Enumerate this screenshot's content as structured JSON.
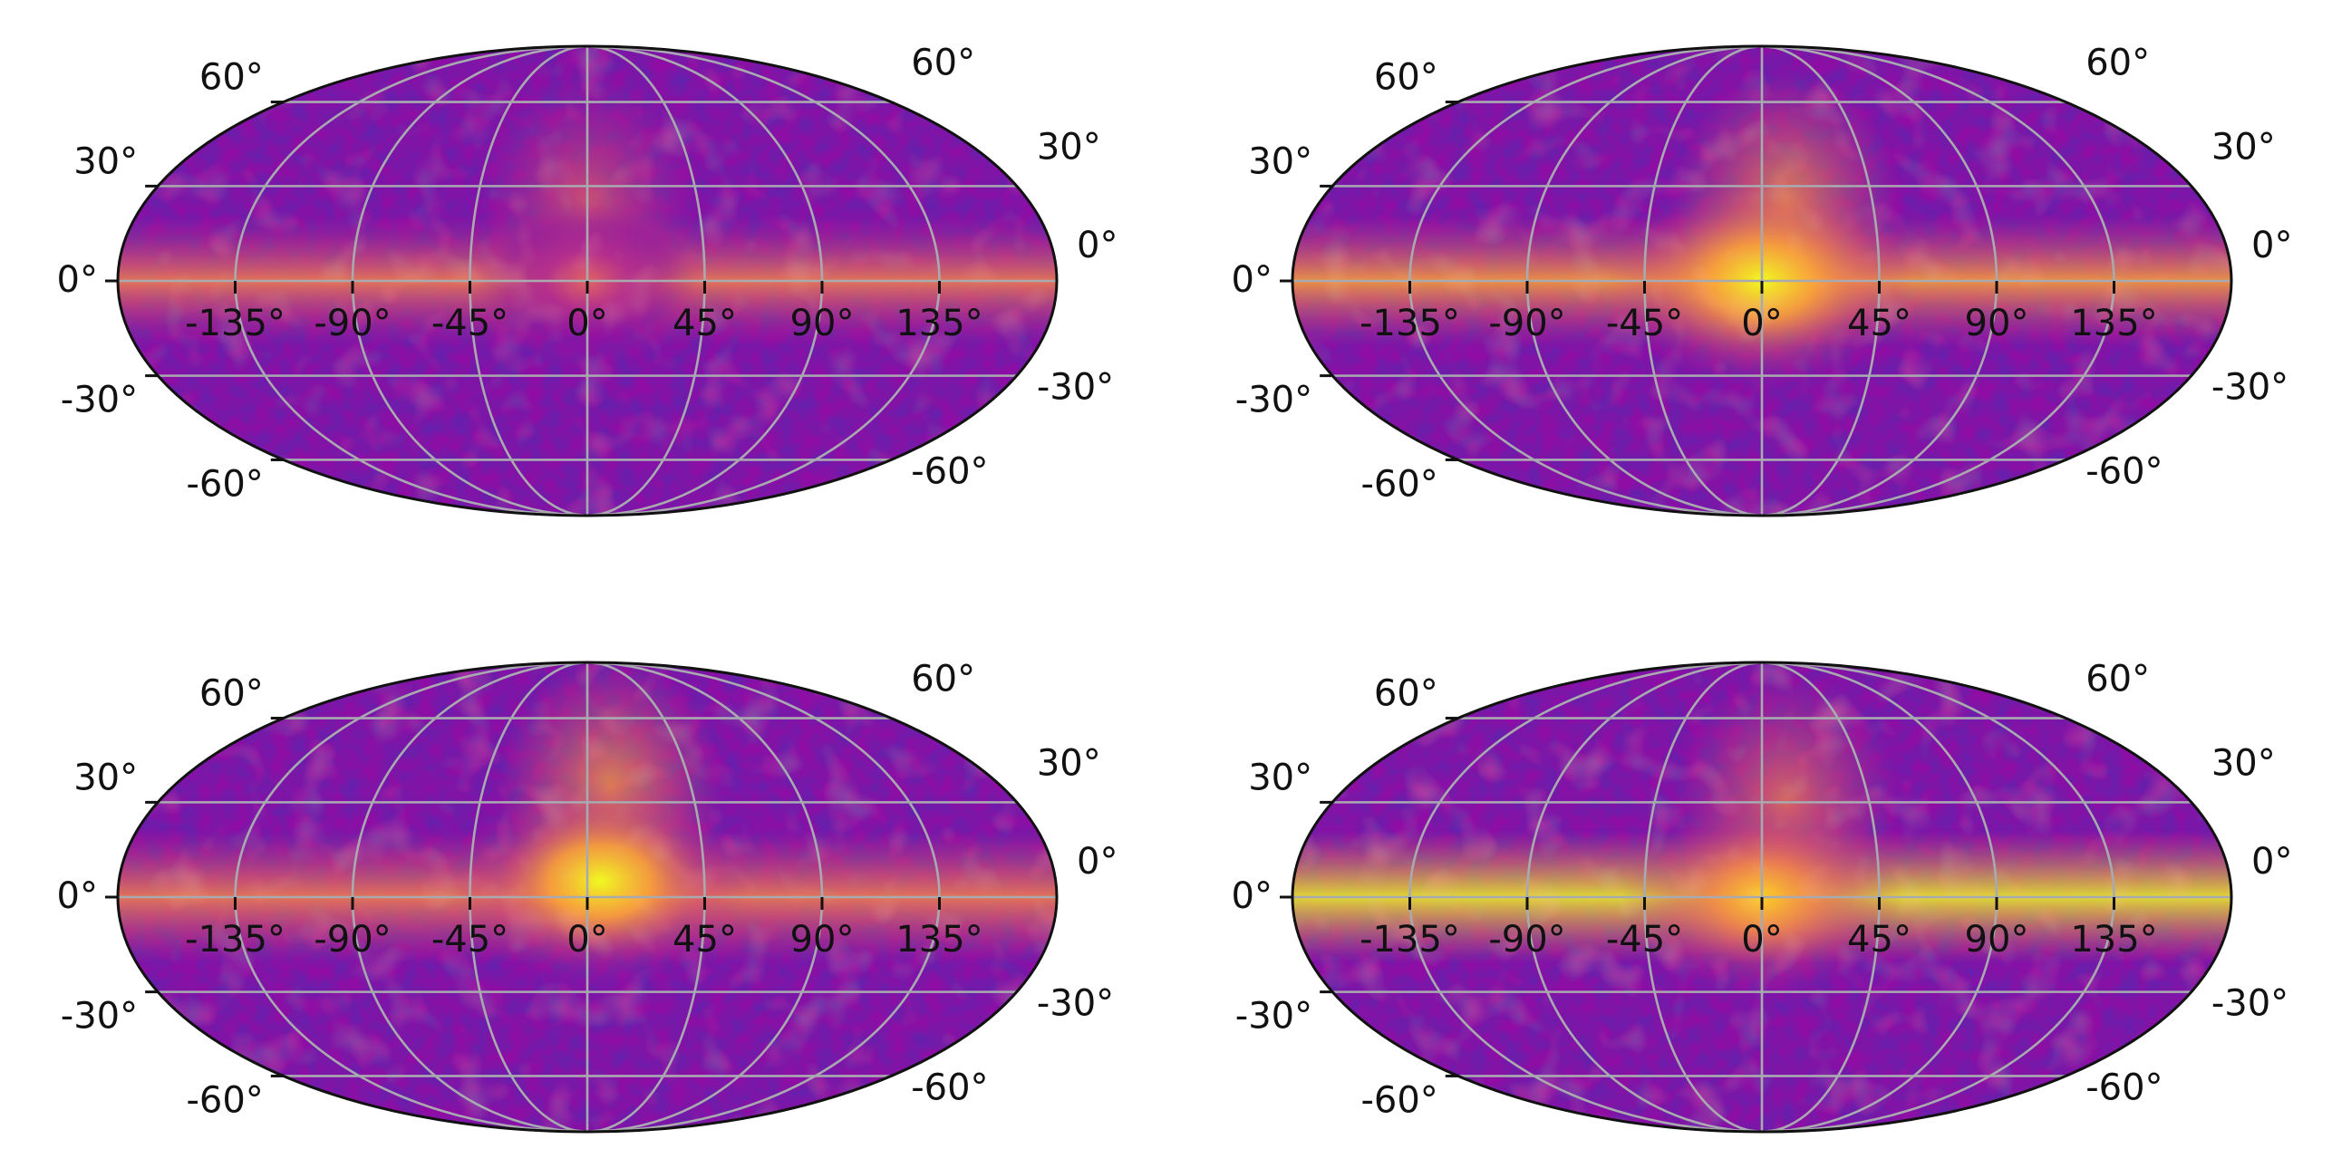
{
  "figure": {
    "colormap": [
      "#0d0887",
      "#3b049a",
      "#6a00a8",
      "#8f0da4",
      "#b12a90",
      "#cc4778",
      "#e16462",
      "#f2844b",
      "#fca636",
      "#fcce25",
      "#f0f921"
    ]
  },
  "chart_data": [
    {
      "type": "heatmap",
      "projection": "mollweide",
      "title": "",
      "xlabel": "",
      "ylabel": "",
      "xlim": [
        -180,
        180
      ],
      "ylim": [
        -90,
        90
      ],
      "grid": true,
      "lon_ticks": [
        -135,
        -90,
        -45,
        0,
        45,
        90,
        135
      ],
      "lon_tick_labels": [
        "-135°",
        "-90°",
        "-45°",
        "0°",
        "45°",
        "90°",
        "135°"
      ],
      "lat_ticks": [
        -60,
        -30,
        0,
        30,
        60
      ],
      "left_lat_labels": [
        "60°",
        "30°",
        "0°",
        "-30°",
        "-60°"
      ],
      "right_lat_labels": [
        "60°",
        "30°",
        "0°",
        "-30°",
        "-60°"
      ],
      "intensity_scale": [
        0,
        1
      ],
      "features": [
        {
          "kind": "galactic-center-bulge",
          "lon": 0,
          "lat": 0,
          "peak": 0.55
        },
        {
          "kind": "galactic-plane-band",
          "lat": 0,
          "peak": 0.4
        },
        {
          "kind": "north-bubble",
          "lon": 0,
          "lat": 25,
          "peak": 0.35
        }
      ]
    },
    {
      "type": "heatmap",
      "projection": "mollweide",
      "title": "",
      "xlabel": "",
      "ylabel": "",
      "xlim": [
        -180,
        180
      ],
      "ylim": [
        -90,
        90
      ],
      "grid": true,
      "lon_ticks": [
        -135,
        -90,
        -45,
        0,
        45,
        90,
        135
      ],
      "lon_tick_labels": [
        "-135°",
        "-90°",
        "-45°",
        "0°",
        "45°",
        "90°",
        "135°"
      ],
      "lat_ticks": [
        -60,
        -30,
        0,
        30,
        60
      ],
      "left_lat_labels": [
        "60°",
        "30°",
        "0°",
        "-30°",
        "-60°"
      ],
      "right_lat_labels": [
        "60°",
        "30°",
        "0°",
        "-30°",
        "-60°"
      ],
      "intensity_scale": [
        0,
        1
      ],
      "features": [
        {
          "kind": "galactic-center-bulge",
          "lon": 0,
          "lat": 0,
          "peak": 1.0
        },
        {
          "kind": "galactic-plane-band",
          "lat": 0,
          "peak": 0.5
        },
        {
          "kind": "north-bubble",
          "lon": 10,
          "lat": 25,
          "peak": 0.55
        }
      ]
    },
    {
      "type": "heatmap",
      "projection": "mollweide",
      "title": "",
      "xlabel": "",
      "ylabel": "",
      "xlim": [
        -180,
        180
      ],
      "ylim": [
        -90,
        90
      ],
      "grid": true,
      "lon_ticks": [
        -135,
        -90,
        -45,
        0,
        45,
        90,
        135
      ],
      "lon_tick_labels": [
        "-135°",
        "-90°",
        "-45°",
        "0°",
        "45°",
        "90°",
        "135°"
      ],
      "lat_ticks": [
        -60,
        -30,
        0,
        30,
        60
      ],
      "left_lat_labels": [
        "60°",
        "30°",
        "0°",
        "-30°",
        "-60°"
      ],
      "right_lat_labels": [
        "60°",
        "30°",
        "0°",
        "-30°",
        "-60°"
      ],
      "intensity_scale": [
        0,
        1
      ],
      "features": [
        {
          "kind": "galactic-center-bulge",
          "lon": 5,
          "lat": 5,
          "peak": 0.95
        },
        {
          "kind": "galactic-plane-band",
          "lat": 0,
          "peak": 0.45
        },
        {
          "kind": "north-bubble",
          "lon": 10,
          "lat": 35,
          "peak": 0.6
        }
      ]
    },
    {
      "type": "heatmap",
      "projection": "mollweide",
      "title": "",
      "xlabel": "",
      "ylabel": "",
      "xlim": [
        -180,
        180
      ],
      "ylim": [
        -90,
        90
      ],
      "grid": true,
      "lon_ticks": [
        -135,
        -90,
        -45,
        0,
        45,
        90,
        135
      ],
      "lon_tick_labels": [
        "-135°",
        "-90°",
        "-45°",
        "0°",
        "45°",
        "90°",
        "135°"
      ],
      "lat_ticks": [
        -60,
        -30,
        0,
        30,
        60
      ],
      "left_lat_labels": [
        "60°",
        "30°",
        "0°",
        "-30°",
        "-60°"
      ],
      "right_lat_labels": [
        "60°",
        "30°",
        "0°",
        "-30°",
        "-60°"
      ],
      "intensity_scale": [
        0,
        1
      ],
      "features": [
        {
          "kind": "galactic-center-bulge",
          "lon": 0,
          "lat": 0,
          "peak": 0.85
        },
        {
          "kind": "galactic-plane-band",
          "lat": 0,
          "peak": 0.7
        },
        {
          "kind": "north-bubble",
          "lon": 10,
          "lat": 30,
          "peak": 0.45
        }
      ]
    }
  ]
}
